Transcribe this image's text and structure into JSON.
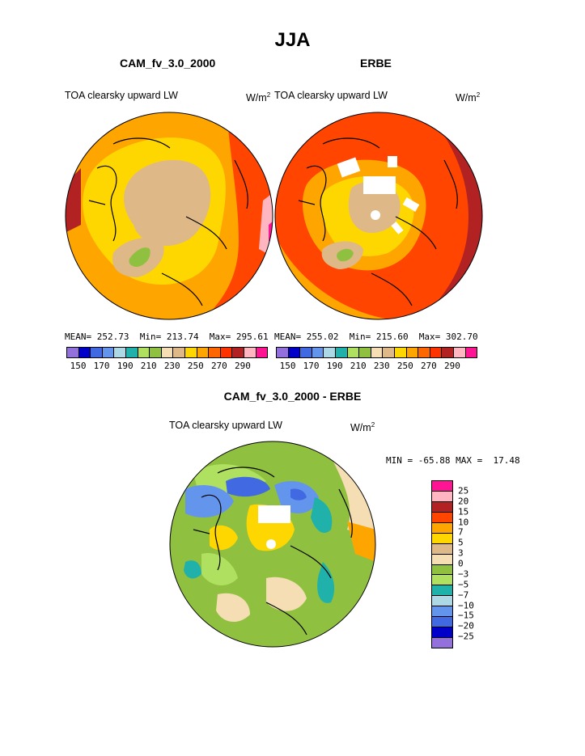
{
  "page_title": "JJA",
  "panels": {
    "left": {
      "title": "CAM_fv_3.0_2000",
      "variable": "TOA clearsky upward LW",
      "units_base": "W/m",
      "units_exp": "2",
      "stats": "MEAN= 252.73  Min= 213.74  Max= 295.61"
    },
    "right": {
      "title": "ERBE",
      "variable": "TOA clearsky upward LW",
      "units_base": "W/m",
      "units_exp": "2",
      "stats": "MEAN= 255.02  Min= 215.60  Max= 302.70"
    },
    "diff": {
      "title": "CAM_fv_3.0_2000 - ERBE",
      "variable": "TOA clearsky upward LW",
      "units_base": "W/m",
      "units_exp": "2",
      "stats": "MIN = -65.88 MAX =  17.48"
    }
  },
  "colorbar_main": {
    "colors": [
      "#9370db",
      "#0000c8",
      "#4169e1",
      "#6495ed",
      "#add8e6",
      "#20b2aa",
      "#b0e060",
      "#90c040",
      "#f5deb3",
      "#deb887",
      "#ffd700",
      "#ffa500",
      "#ff6600",
      "#ff3300",
      "#b22222",
      "#ffb6c1",
      "#ff1493"
    ],
    "labels": [
      "150",
      "170",
      "190",
      "210",
      "230",
      "250",
      "270",
      "290"
    ]
  },
  "colorbar_diff": {
    "colors": [
      "#ff1493",
      "#ffb6c1",
      "#b22222",
      "#ff4500",
      "#ffa500",
      "#ffd700",
      "#deb887",
      "#f5deb3",
      "#90c040",
      "#b0e060",
      "#20b2aa",
      "#add8e6",
      "#6495ed",
      "#4169e1",
      "#0000c8",
      "#9370db"
    ],
    "labels": [
      "25",
      "20",
      "15",
      "10",
      "7",
      "5",
      "3",
      "0",
      "−3",
      "−5",
      "−7",
      "−10",
      "−15",
      "−20",
      "−25"
    ]
  },
  "map_colors": {
    "orange": "#ffa500",
    "red": "#ff4500",
    "darkred": "#b22222",
    "yellow": "#ffd700",
    "tan": "#deb887",
    "green": "#90c040",
    "pink": "#ffb6c1",
    "magenta": "#ff1493",
    "lightgreen": "#b0e060",
    "blue": "#6495ed",
    "royal": "#4169e1",
    "teal": "#20b2aa",
    "wheat": "#f5deb3",
    "lightblue": "#add8e6",
    "navy": "#0000c8"
  }
}
